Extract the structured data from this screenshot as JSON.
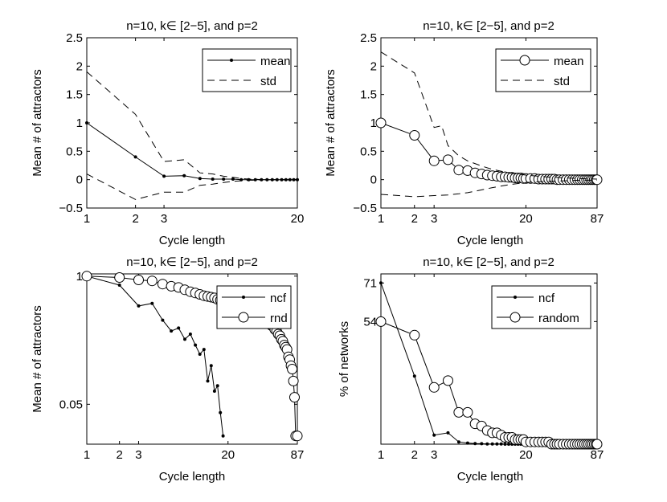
{
  "chart_data": [
    {
      "type": "line",
      "title": "n=10, k∈ [2−5], and p=2",
      "xlabel": "Cycle length",
      "ylabel": "Mean # of attractors",
      "xscale": "log",
      "xlim": [
        1,
        20
      ],
      "ylim": [
        -0.5,
        2.5
      ],
      "xticks": [
        1,
        2,
        3,
        20
      ],
      "yticks": [
        -0.5,
        0,
        0.5,
        1,
        1.5,
        2,
        2.5
      ],
      "ytick_labels": [
        "−0.5",
        "0",
        "0.5",
        "1",
        "1.5",
        "2",
        "2.5"
      ],
      "legend_position": "top-right",
      "series": [
        {
          "name": "mean",
          "style": "solid-dot",
          "x": [
            1,
            2,
            3,
            4,
            5,
            6,
            7,
            8,
            9,
            10,
            11,
            12,
            13,
            14,
            15,
            16,
            17,
            18,
            19,
            20
          ],
          "y": [
            1.0,
            0.4,
            0.06,
            0.07,
            0.02,
            0.01,
            0.01,
            0.01,
            0.0,
            0.0,
            0.0,
            0.0,
            0.0,
            0.0,
            0.0,
            0.0,
            0.0,
            0.0,
            0.0,
            0.0
          ]
        },
        {
          "name": "std",
          "style": "dashed",
          "x": [
            1,
            2,
            3,
            4,
            5,
            6,
            7,
            8,
            9,
            10,
            11,
            12,
            13,
            14,
            15,
            16,
            17,
            18,
            19,
            20
          ],
          "y": [
            1.9,
            1.15,
            0.32,
            0.35,
            0.12,
            0.1,
            0.06,
            0.04,
            0.02,
            0.01,
            0.01,
            0.0,
            0.0,
            0.0,
            0.0,
            0.0,
            0.0,
            0.0,
            0.0,
            0.0
          ]
        },
        {
          "name": "",
          "style": "dashed",
          "x": [
            1,
            2,
            3,
            4,
            5,
            6,
            7,
            8,
            9,
            10,
            11,
            12,
            13,
            14,
            15,
            16,
            17,
            18,
            19,
            20
          ],
          "y": [
            0.1,
            -0.35,
            -0.22,
            -0.22,
            -0.1,
            -0.08,
            -0.05,
            -0.03,
            -0.02,
            -0.01,
            -0.01,
            0.0,
            0.0,
            0.0,
            0.0,
            0.0,
            0.0,
            0.0,
            0.0,
            0.0
          ]
        }
      ]
    },
    {
      "type": "line",
      "title": "n=10, k∈ [2−5], and p=2",
      "xlabel": "Cycle length",
      "ylabel": "Mean # of attractors",
      "xscale": "log",
      "xlim": [
        1,
        87
      ],
      "ylim": [
        -0.5,
        2.5
      ],
      "xticks": [
        1,
        2,
        3,
        20,
        87
      ],
      "yticks": [
        -0.5,
        0,
        0.5,
        1,
        1.5,
        2,
        2.5
      ],
      "ytick_labels": [
        "−0.5",
        "0",
        "0.5",
        "1",
        "1.5",
        "2",
        "2.5"
      ],
      "legend_position": "top-right",
      "series": [
        {
          "name": "mean",
          "style": "solid-circle",
          "x": [
            1,
            2,
            3,
            4,
            5,
            6,
            7,
            8,
            9,
            10,
            11,
            12,
            13,
            14,
            15,
            16,
            17,
            18,
            19,
            20,
            22,
            24,
            26,
            28,
            30,
            32,
            34,
            36,
            38,
            40,
            43,
            46,
            49,
            52,
            55,
            58,
            61,
            64,
            67,
            70,
            73,
            76,
            79,
            82,
            85,
            87
          ],
          "y": [
            1.0,
            0.78,
            0.33,
            0.35,
            0.17,
            0.16,
            0.12,
            0.1,
            0.08,
            0.07,
            0.06,
            0.05,
            0.05,
            0.04,
            0.04,
            0.03,
            0.03,
            0.03,
            0.02,
            0.02,
            0.02,
            0.02,
            0.01,
            0.01,
            0.01,
            0.01,
            0.01,
            0.01,
            0.0,
            0.0,
            0.0,
            0.0,
            0.0,
            0.0,
            0.0,
            0.0,
            0.0,
            0.0,
            0.0,
            0.0,
            0.0,
            0.0,
            0.0,
            0.0,
            0.0,
            0.0
          ]
        },
        {
          "name": "std",
          "style": "dashed",
          "x": [
            1,
            2,
            3,
            3.5,
            4,
            5,
            6,
            8,
            10,
            14,
            20,
            30,
            45,
            60,
            87
          ],
          "y": [
            2.25,
            1.88,
            0.92,
            0.95,
            0.6,
            0.42,
            0.33,
            0.24,
            0.18,
            0.12,
            0.08,
            0.05,
            0.03,
            0.02,
            0.01
          ]
        },
        {
          "name": "",
          "style": "dashed",
          "x": [
            1,
            2,
            3,
            4,
            5,
            6,
            8,
            10,
            14,
            20,
            30,
            45,
            60,
            87
          ],
          "y": [
            -0.26,
            -0.3,
            -0.28,
            -0.27,
            -0.25,
            -0.23,
            -0.18,
            -0.14,
            -0.09,
            -0.05,
            -0.03,
            -0.02,
            -0.01,
            -0.01
          ]
        }
      ]
    },
    {
      "type": "line",
      "title": "n=10, k∈ [2−5], and p=2",
      "xlabel": "Cycle length",
      "ylabel": "Mean # of attractors",
      "xscale": "log",
      "xlim": [
        1,
        87
      ],
      "xticks": [
        1,
        2,
        3,
        20,
        87
      ],
      "yticks": [
        "1",
        "0.05"
      ],
      "legend_position": "top-right",
      "series": [
        {
          "name": "ncf",
          "style": "solid-dot",
          "x": [
            1,
            2,
            3,
            4,
            5,
            6,
            7,
            8,
            9,
            10,
            11,
            12,
            13,
            14,
            15,
            16,
            17,
            18
          ],
          "y": [
            1.0,
            0.82,
            0.52,
            0.55,
            0.38,
            0.3,
            0.32,
            0.25,
            0.28,
            0.22,
            0.18,
            0.2,
            0.1,
            0.14,
            0.08,
            0.09,
            0.05,
            0.03
          ]
        },
        {
          "name": "rnd",
          "style": "solid-circle",
          "x": [
            1,
            2,
            3,
            4,
            5,
            6,
            7,
            8,
            9,
            10,
            11,
            12,
            13,
            14,
            15,
            16,
            17,
            18,
            19,
            20,
            22,
            24,
            26,
            28,
            30,
            32,
            34,
            36,
            38,
            40,
            42,
            44,
            46,
            48,
            50,
            52,
            54,
            56,
            58,
            60,
            62,
            64,
            66,
            68,
            70,
            72,
            74,
            76,
            78,
            80,
            82,
            84,
            87
          ],
          "y": [
            1.0,
            0.97,
            0.92,
            0.9,
            0.84,
            0.8,
            0.78,
            0.74,
            0.71,
            0.69,
            0.67,
            0.65,
            0.64,
            0.63,
            0.62,
            0.6,
            0.59,
            0.58,
            0.57,
            0.56,
            0.55,
            0.53,
            0.52,
            0.5,
            0.48,
            0.47,
            0.45,
            0.44,
            0.42,
            0.41,
            0.4,
            0.38,
            0.37,
            0.36,
            0.34,
            0.33,
            0.31,
            0.3,
            0.28,
            0.27,
            0.25,
            0.24,
            0.22,
            0.21,
            0.2,
            0.17,
            0.16,
            0.14,
            0.13,
            0.1,
            0.07,
            0.03,
            0.03
          ]
        }
      ]
    },
    {
      "type": "line",
      "title": "n=10, k∈ [2−5], and p=2",
      "xlabel": "Cycle length",
      "ylabel": "% of networks",
      "xscale": "log",
      "xlim": [
        1,
        87
      ],
      "ylim": [
        0,
        75
      ],
      "xticks": [
        1,
        2,
        3,
        20,
        87
      ],
      "yticks": [
        54,
        71
      ],
      "legend_position": "top-right",
      "series": [
        {
          "name": "ncf",
          "style": "solid-dot",
          "x": [
            1,
            2,
            3,
            4,
            5,
            6,
            7,
            8,
            9,
            10,
            11,
            12,
            13,
            14,
            15,
            16,
            17,
            18,
            19,
            20,
            22,
            24,
            26,
            28,
            30,
            35,
            40,
            45,
            50,
            60,
            70,
            80,
            87
          ],
          "y": [
            71,
            30,
            4,
            5,
            1,
            0.5,
            0.3,
            0.2,
            0.1,
            0.1,
            0.1,
            0.1,
            0,
            0,
            0,
            0,
            0,
            0,
            0,
            0,
            0,
            0,
            0,
            0,
            0,
            0,
            0,
            0,
            0,
            0,
            0,
            0,
            0
          ]
        },
        {
          "name": "random",
          "style": "solid-circle",
          "x": [
            1,
            2,
            3,
            4,
            5,
            6,
            7,
            8,
            9,
            10,
            11,
            12,
            13,
            14,
            15,
            16,
            17,
            18,
            19,
            20,
            22,
            24,
            26,
            28,
            30,
            32,
            34,
            36,
            38,
            40,
            43,
            46,
            49,
            52,
            55,
            58,
            61,
            64,
            67,
            70,
            73,
            76,
            79,
            82,
            85,
            87
          ],
          "y": [
            54,
            48,
            25,
            28,
            14,
            14,
            9,
            8,
            6,
            5,
            5,
            4,
            3,
            3,
            3,
            2,
            2,
            2,
            2,
            1,
            1,
            1,
            1,
            1,
            1,
            1,
            0,
            0,
            0,
            0,
            0,
            0,
            0,
            0,
            0,
            0,
            0,
            0,
            0,
            0,
            0,
            0,
            0,
            0,
            0,
            0
          ]
        }
      ]
    }
  ]
}
